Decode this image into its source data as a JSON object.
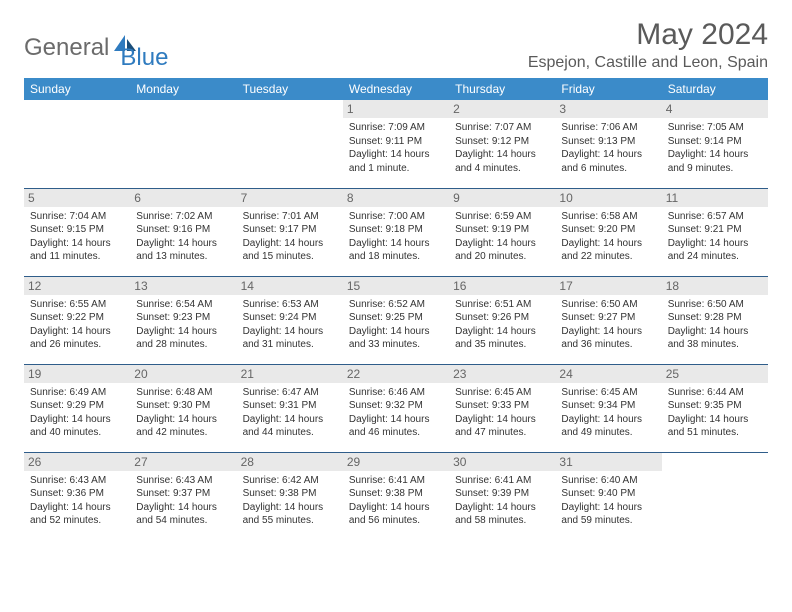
{
  "brand": {
    "part1": "General",
    "part2": "Blue"
  },
  "title": "May 2024",
  "location": "Espejon, Castille and Leon, Spain",
  "colors": {
    "header_bg": "#3b8bc9",
    "header_text": "#ffffff",
    "daynum_bg": "#e9e9e9",
    "cell_border": "#2f5d8a",
    "brand_gray": "#6b6b6b",
    "brand_blue": "#2f7bbf"
  },
  "font": {
    "title_size": 30,
    "location_size": 16,
    "header_size": 12,
    "cell_size": 10
  },
  "weekdays": [
    "Sunday",
    "Monday",
    "Tuesday",
    "Wednesday",
    "Thursday",
    "Friday",
    "Saturday"
  ],
  "weeks": [
    [
      {
        "empty": true
      },
      {
        "empty": true
      },
      {
        "empty": true
      },
      {
        "day": "1",
        "sunrise": "Sunrise: 7:09 AM",
        "sunset": "Sunset: 9:11 PM",
        "daylight": "Daylight: 14 hours and 1 minute."
      },
      {
        "day": "2",
        "sunrise": "Sunrise: 7:07 AM",
        "sunset": "Sunset: 9:12 PM",
        "daylight": "Daylight: 14 hours and 4 minutes."
      },
      {
        "day": "3",
        "sunrise": "Sunrise: 7:06 AM",
        "sunset": "Sunset: 9:13 PM",
        "daylight": "Daylight: 14 hours and 6 minutes."
      },
      {
        "day": "4",
        "sunrise": "Sunrise: 7:05 AM",
        "sunset": "Sunset: 9:14 PM",
        "daylight": "Daylight: 14 hours and 9 minutes."
      }
    ],
    [
      {
        "day": "5",
        "sunrise": "Sunrise: 7:04 AM",
        "sunset": "Sunset: 9:15 PM",
        "daylight": "Daylight: 14 hours and 11 minutes."
      },
      {
        "day": "6",
        "sunrise": "Sunrise: 7:02 AM",
        "sunset": "Sunset: 9:16 PM",
        "daylight": "Daylight: 14 hours and 13 minutes."
      },
      {
        "day": "7",
        "sunrise": "Sunrise: 7:01 AM",
        "sunset": "Sunset: 9:17 PM",
        "daylight": "Daylight: 14 hours and 15 minutes."
      },
      {
        "day": "8",
        "sunrise": "Sunrise: 7:00 AM",
        "sunset": "Sunset: 9:18 PM",
        "daylight": "Daylight: 14 hours and 18 minutes."
      },
      {
        "day": "9",
        "sunrise": "Sunrise: 6:59 AM",
        "sunset": "Sunset: 9:19 PM",
        "daylight": "Daylight: 14 hours and 20 minutes."
      },
      {
        "day": "10",
        "sunrise": "Sunrise: 6:58 AM",
        "sunset": "Sunset: 9:20 PM",
        "daylight": "Daylight: 14 hours and 22 minutes."
      },
      {
        "day": "11",
        "sunrise": "Sunrise: 6:57 AM",
        "sunset": "Sunset: 9:21 PM",
        "daylight": "Daylight: 14 hours and 24 minutes."
      }
    ],
    [
      {
        "day": "12",
        "sunrise": "Sunrise: 6:55 AM",
        "sunset": "Sunset: 9:22 PM",
        "daylight": "Daylight: 14 hours and 26 minutes."
      },
      {
        "day": "13",
        "sunrise": "Sunrise: 6:54 AM",
        "sunset": "Sunset: 9:23 PM",
        "daylight": "Daylight: 14 hours and 28 minutes."
      },
      {
        "day": "14",
        "sunrise": "Sunrise: 6:53 AM",
        "sunset": "Sunset: 9:24 PM",
        "daylight": "Daylight: 14 hours and 31 minutes."
      },
      {
        "day": "15",
        "sunrise": "Sunrise: 6:52 AM",
        "sunset": "Sunset: 9:25 PM",
        "daylight": "Daylight: 14 hours and 33 minutes."
      },
      {
        "day": "16",
        "sunrise": "Sunrise: 6:51 AM",
        "sunset": "Sunset: 9:26 PM",
        "daylight": "Daylight: 14 hours and 35 minutes."
      },
      {
        "day": "17",
        "sunrise": "Sunrise: 6:50 AM",
        "sunset": "Sunset: 9:27 PM",
        "daylight": "Daylight: 14 hours and 36 minutes."
      },
      {
        "day": "18",
        "sunrise": "Sunrise: 6:50 AM",
        "sunset": "Sunset: 9:28 PM",
        "daylight": "Daylight: 14 hours and 38 minutes."
      }
    ],
    [
      {
        "day": "19",
        "sunrise": "Sunrise: 6:49 AM",
        "sunset": "Sunset: 9:29 PM",
        "daylight": "Daylight: 14 hours and 40 minutes."
      },
      {
        "day": "20",
        "sunrise": "Sunrise: 6:48 AM",
        "sunset": "Sunset: 9:30 PM",
        "daylight": "Daylight: 14 hours and 42 minutes."
      },
      {
        "day": "21",
        "sunrise": "Sunrise: 6:47 AM",
        "sunset": "Sunset: 9:31 PM",
        "daylight": "Daylight: 14 hours and 44 minutes."
      },
      {
        "day": "22",
        "sunrise": "Sunrise: 6:46 AM",
        "sunset": "Sunset: 9:32 PM",
        "daylight": "Daylight: 14 hours and 46 minutes."
      },
      {
        "day": "23",
        "sunrise": "Sunrise: 6:45 AM",
        "sunset": "Sunset: 9:33 PM",
        "daylight": "Daylight: 14 hours and 47 minutes."
      },
      {
        "day": "24",
        "sunrise": "Sunrise: 6:45 AM",
        "sunset": "Sunset: 9:34 PM",
        "daylight": "Daylight: 14 hours and 49 minutes."
      },
      {
        "day": "25",
        "sunrise": "Sunrise: 6:44 AM",
        "sunset": "Sunset: 9:35 PM",
        "daylight": "Daylight: 14 hours and 51 minutes."
      }
    ],
    [
      {
        "day": "26",
        "sunrise": "Sunrise: 6:43 AM",
        "sunset": "Sunset: 9:36 PM",
        "daylight": "Daylight: 14 hours and 52 minutes."
      },
      {
        "day": "27",
        "sunrise": "Sunrise: 6:43 AM",
        "sunset": "Sunset: 9:37 PM",
        "daylight": "Daylight: 14 hours and 54 minutes."
      },
      {
        "day": "28",
        "sunrise": "Sunrise: 6:42 AM",
        "sunset": "Sunset: 9:38 PM",
        "daylight": "Daylight: 14 hours and 55 minutes."
      },
      {
        "day": "29",
        "sunrise": "Sunrise: 6:41 AM",
        "sunset": "Sunset: 9:38 PM",
        "daylight": "Daylight: 14 hours and 56 minutes."
      },
      {
        "day": "30",
        "sunrise": "Sunrise: 6:41 AM",
        "sunset": "Sunset: 9:39 PM",
        "daylight": "Daylight: 14 hours and 58 minutes."
      },
      {
        "day": "31",
        "sunrise": "Sunrise: 6:40 AM",
        "sunset": "Sunset: 9:40 PM",
        "daylight": "Daylight: 14 hours and 59 minutes."
      },
      {
        "empty": true
      }
    ]
  ]
}
